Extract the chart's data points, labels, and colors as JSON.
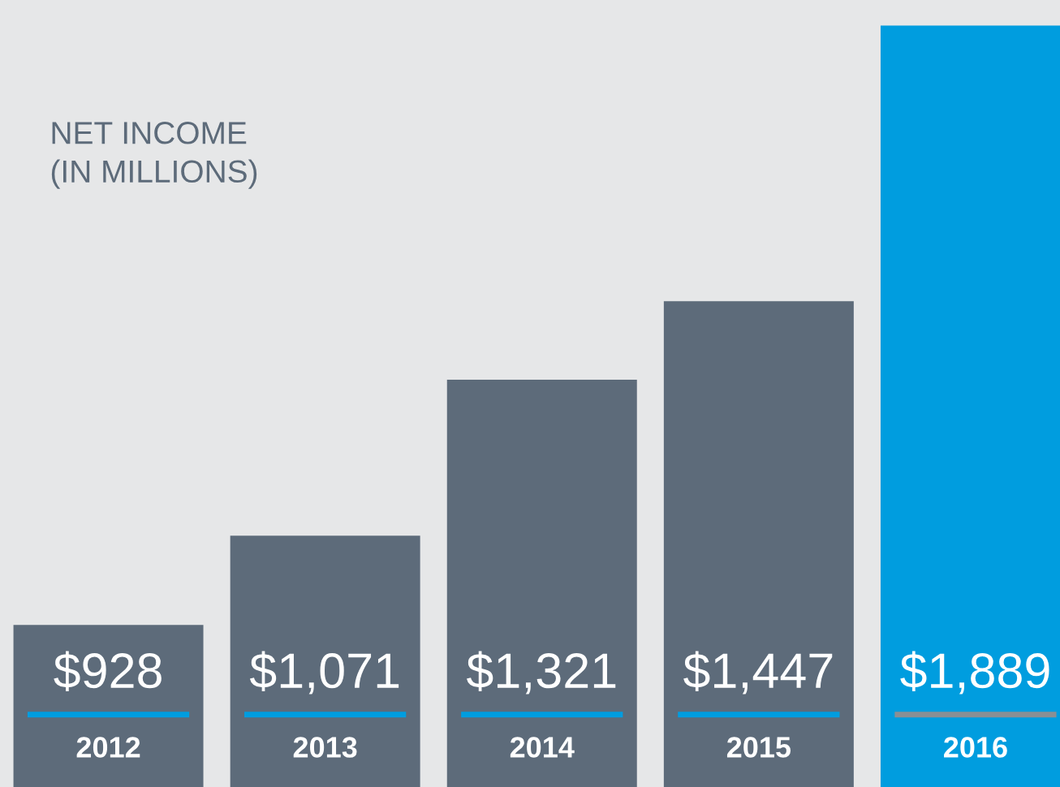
{
  "chart_data": {
    "type": "bar",
    "title": "NET INCOME\n(IN MILLIONS)",
    "categories": [
      "2012",
      "2013",
      "2014",
      "2015",
      "2016"
    ],
    "values": [
      928,
      1071,
      1321,
      1447,
      1889
    ],
    "value_labels": [
      "$928",
      "$1,071",
      "$1,321",
      "$1,447",
      "$1,889"
    ],
    "colors": [
      "#5d6b7a",
      "#5d6b7a",
      "#5d6b7a",
      "#5d6b7a",
      "#009ddf"
    ],
    "ylim": [
      668,
      1930
    ],
    "tick_labels": false
  }
}
